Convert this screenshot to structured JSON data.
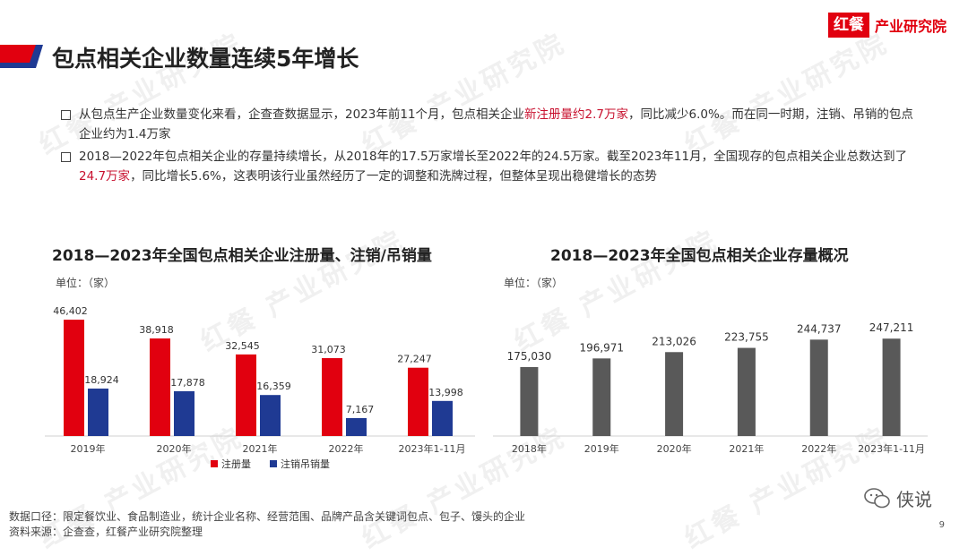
{
  "brand": {
    "name": "红餐",
    "suffix": "产业研究院",
    "color": "#e1000f"
  },
  "title": "包点相关企业数量连续5年增长",
  "bullets": [
    {
      "pre": "从包点生产企业数量变化来看，企查查数据显示，2023年前11个月，包点相关企业",
      "highlight": "新注册量约2.7万家",
      "post": "，同比减少6.0%。而在同一时期，注销、吊销的包点企业约为1.4万家"
    },
    {
      "pre": "2018—2022年包点相关企业的存量持续增长，从2018年的17.5万家增长至2022年的24.5万家。截至2023年11月，全国现存的包点相关企业总数达到了",
      "highlight": "24.7万家",
      "post": "，同比增长5.6%，这表明该行业虽然经历了一定的调整和洗牌过程，但整体呈现出稳健增长的态势"
    }
  ],
  "watermark": "红餐 产业研究院",
  "chart_data": [
    {
      "type": "bar",
      "title": "2018—2023年全国包点相关企业注册量、注销/吊销量",
      "unit_label": "单位：（家）",
      "categories": [
        "2019年",
        "2020年",
        "2021年",
        "2022年",
        "2023年1-11月"
      ],
      "series": [
        {
          "name": "注册量",
          "color": "#e1000f",
          "values": [
            46402,
            38918,
            32545,
            31073,
            27247
          ],
          "labels": [
            "46,402",
            "38,918",
            "32,545",
            "31,073",
            "27,247"
          ]
        },
        {
          "name": "注销吊销量",
          "color": "#1f3a93",
          "values": [
            18924,
            17878,
            16359,
            7167,
            13998
          ],
          "labels": [
            "18,924",
            "17,878",
            "16,359",
            "7,167",
            "13,998"
          ]
        }
      ],
      "legend_position": "bottom",
      "ylim": [
        0,
        50000
      ],
      "grid": false
    },
    {
      "type": "bar",
      "title": "2018—2023年全国包点相关企业存量概况",
      "unit_label": "单位：（家）",
      "categories": [
        "2018年",
        "2019年",
        "2020年",
        "2021年",
        "2022年",
        "2023年1-11月"
      ],
      "series": [
        {
          "color": "#595959",
          "values": [
            175030,
            196971,
            213026,
            223755,
            244737,
            247211
          ],
          "labels": [
            "175,030",
            "196,971",
            "213,026",
            "223,755",
            "244,737",
            "247,211"
          ]
        }
      ],
      "ylim": [
        0,
        400000
      ],
      "grid": false
    }
  ],
  "footer": {
    "line1": "数据口径：限定餐饮业、食品制造业，统计企业名称、经营范围、品牌产品含关键词包点、包子、馒头的企业",
    "line2": "资料来源：企查查，红餐产业研究院整理"
  },
  "wechat_label": "侠说",
  "page_number": "9"
}
